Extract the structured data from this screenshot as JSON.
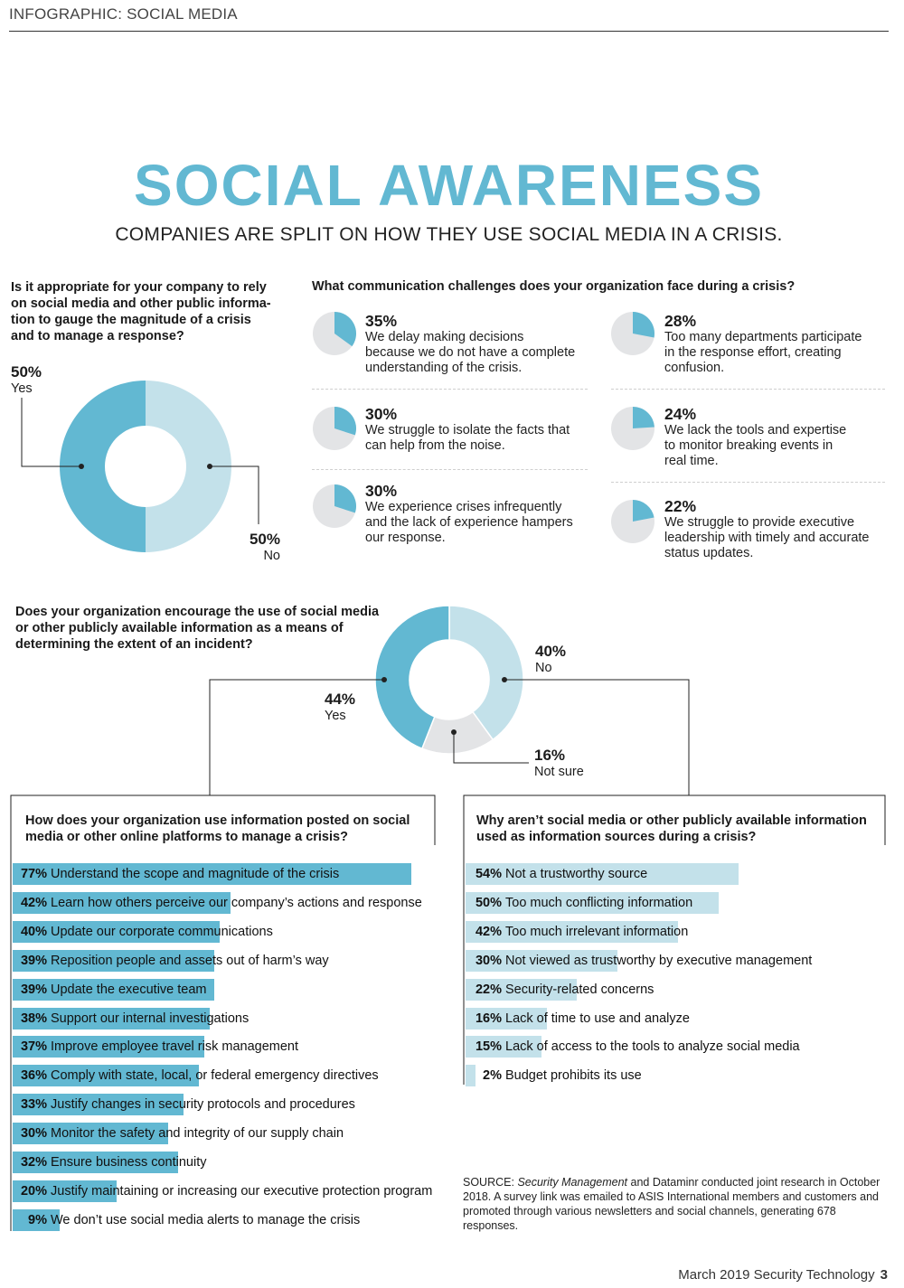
{
  "header": {
    "label": "INFOGRAPHIC: SOCIAL MEDIA"
  },
  "title": "SOCIAL AWARENESS",
  "subtitle": "COMPANIES ARE SPLIT ON HOW THEY USE SOCIAL MEDIA IN A CRISIS.",
  "colors": {
    "accent": "#62b8d2",
    "light": "#c3e1ea",
    "grey": "#e3e4e6"
  },
  "chart_data": [
    {
      "type": "pie",
      "question": "Is it appropriate for your company to rely on social media and other public information to gauge the magnitude of a crisis and to manage a response?",
      "question_lines": [
        "Is it appropriate for your company to rely",
        "on social media and other public informa-",
        "tion to gauge the magnitude of a crisis",
        "and to manage a response?"
      ],
      "slices": [
        {
          "pct": "50%",
          "label": "Yes",
          "value": 50,
          "color": "#62b8d2"
        },
        {
          "pct": "50%",
          "label": "No",
          "value": 50,
          "color": "#c3e1ea"
        }
      ]
    },
    {
      "type": "pie",
      "question": "What communication challenges does your organization face during a crisis?",
      "items": [
        {
          "pct": "35%",
          "value": 35,
          "lines": [
            "We delay making decisions",
            "because we do not have a complete",
            "understanding of the crisis."
          ]
        },
        {
          "pct": "30%",
          "value": 30,
          "lines": [
            "We struggle to isolate the facts that",
            "can help from the noise."
          ]
        },
        {
          "pct": "30%",
          "value": 30,
          "lines": [
            "We experience crises infrequently",
            "and the lack of experience hampers",
            "our response."
          ]
        },
        {
          "pct": "28%",
          "value": 28,
          "lines": [
            "Too many departments participate",
            "in the response effort, creating",
            "confusion."
          ]
        },
        {
          "pct": "24%",
          "value": 24,
          "lines": [
            "We lack the tools and expertise",
            "to monitor breaking events in",
            "real time."
          ]
        },
        {
          "pct": "22%",
          "value": 22,
          "lines": [
            "We struggle to provide executive",
            "leadership with timely and accurate",
            "status updates."
          ]
        }
      ]
    },
    {
      "type": "pie",
      "question_lines": [
        "Does your organization encourage the use of social media",
        "or other publicly available information as a means of",
        "determining the extent of an incident?"
      ],
      "slices": [
        {
          "pct": "40%",
          "label": "No",
          "value": 40,
          "color": "#c3e1ea"
        },
        {
          "pct": "16%",
          "label": "Not sure",
          "value": 16,
          "color": "#e3e4e6"
        },
        {
          "pct": "44%",
          "label": "Yes",
          "value": 44,
          "color": "#62b8d2"
        }
      ]
    },
    {
      "type": "bar",
      "question_lines": [
        "How does your organization use information posted on social",
        "media or other online platforms to manage a crisis?"
      ],
      "bars": [
        {
          "pct": "77%",
          "value": 77,
          "label": "Understand the scope and magnitude of the crisis"
        },
        {
          "pct": "42%",
          "value": 42,
          "label": "Learn how others perceive our company’s actions and response"
        },
        {
          "pct": "40%",
          "value": 40,
          "label": "Update our corporate communications"
        },
        {
          "pct": "39%",
          "value": 39,
          "label": "Reposition people and assets out of harm’s way"
        },
        {
          "pct": "39%",
          "value": 39,
          "label": "Update the executive team"
        },
        {
          "pct": "38%",
          "value": 38,
          "label": "Support our internal investigations"
        },
        {
          "pct": "37%",
          "value": 37,
          "label": "Improve employee travel risk management"
        },
        {
          "pct": "36%",
          "value": 36,
          "label": "Comply with state, local, or federal emergency directives"
        },
        {
          "pct": "33%",
          "value": 33,
          "label": "Justify changes in security protocols and procedures"
        },
        {
          "pct": "30%",
          "value": 30,
          "label": "Monitor the safety and integrity of our supply chain"
        },
        {
          "pct": "32%",
          "value": 32,
          "label": "Ensure business continuity"
        },
        {
          "pct": "20%",
          "value": 20,
          "label": "Justify maintaining or increasing our executive protection program"
        },
        {
          "pct": "9%",
          "value": 9,
          "label": "We don’t use social media alerts to manage the crisis"
        }
      ]
    },
    {
      "type": "bar",
      "question_lines": [
        "Why aren’t social media or other publicly available information",
        "used as information sources during a crisis?"
      ],
      "bars": [
        {
          "pct": "54%",
          "value": 54,
          "label": "Not a trustworthy source"
        },
        {
          "pct": "50%",
          "value": 50,
          "label": "Too much conflicting information"
        },
        {
          "pct": "42%",
          "value": 42,
          "label": "Too much irrelevant information"
        },
        {
          "pct": "30%",
          "value": 30,
          "label": "Not viewed as trustworthy by executive management"
        },
        {
          "pct": "22%",
          "value": 22,
          "label": "Security-related concerns"
        },
        {
          "pct": "16%",
          "value": 16,
          "label": "Lack of time to use and analyze"
        },
        {
          "pct": "15%",
          "value": 15,
          "label": "Lack of access to the tools to analyze social media"
        },
        {
          "pct": "2%",
          "value": 2,
          "label": "Budget prohibits its use"
        }
      ]
    }
  ],
  "source": {
    "prefix": "SOURCE: ",
    "pub": "Security Management",
    "rest": " and Dataminr conducted joint research in October 2018. A survey link was emailed to ASIS International members and customers and promoted through various newsletters and social channels, generating 678 responses."
  },
  "footer": {
    "text": "March 2019  Security Technology",
    "page": "3"
  }
}
